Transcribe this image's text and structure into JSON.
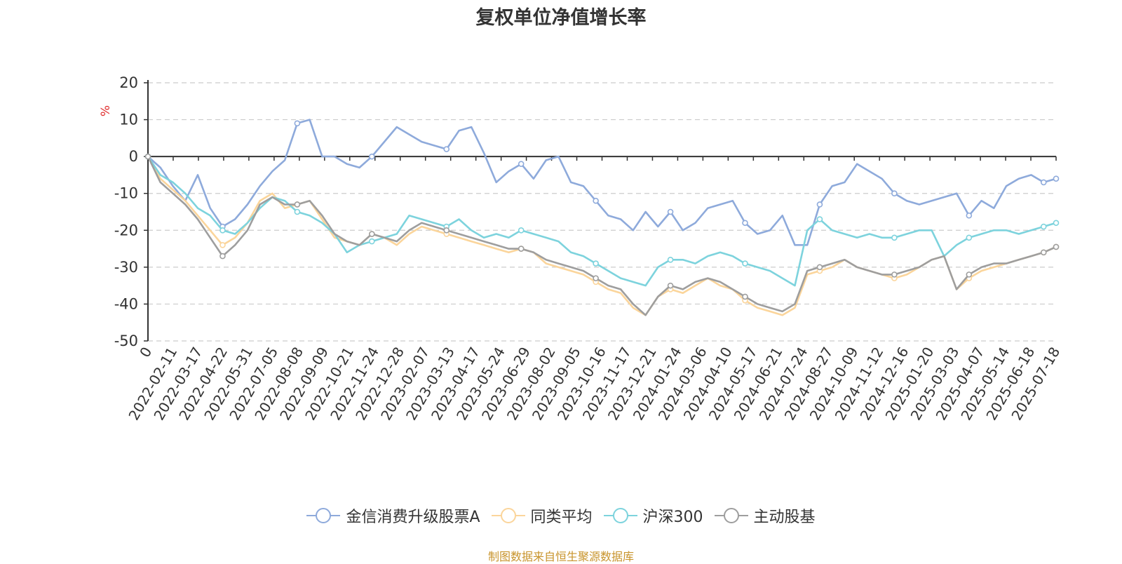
{
  "chart_data": {
    "type": "line",
    "title": "复权单位净值增长率",
    "ylabel": "%",
    "ylim": [
      -50,
      20
    ],
    "yticks": [
      20,
      10,
      0,
      -10,
      -20,
      -30,
      -40,
      -50
    ],
    "grid": true,
    "legend_position": "bottom",
    "source": "制图数据来自恒生聚源数据库",
    "x_labels": [
      "0",
      "2022-02-11",
      "2022-03-17",
      "2022-04-22",
      "2022-05-31",
      "2022-07-05",
      "2022-08-08",
      "2022-09-09",
      "2022-10-21",
      "2022-11-24",
      "2022-12-28",
      "2023-02-07",
      "2023-03-13",
      "2023-04-17",
      "2023-05-24",
      "2023-06-29",
      "2023-08-02",
      "2023-09-05",
      "2023-10-16",
      "2023-11-17",
      "2023-12-21",
      "2024-01-24",
      "2024-03-06",
      "2024-04-10",
      "2024-05-17",
      "2024-06-21",
      "2024-07-24",
      "2024-08-27",
      "2024-10-09",
      "2024-11-12",
      "2024-12-16",
      "2025-01-20",
      "2025-03-03",
      "2025-04-07",
      "2025-05-14",
      "2025-06-18",
      "2025-07-18"
    ],
    "series": [
      {
        "name": "金信消费升级股票A",
        "color": "#8eaadb",
        "values": [
          0,
          -3,
          -8,
          -12,
          -5,
          -14,
          -19,
          -17,
          -13,
          -8,
          -4,
          -1,
          9,
          10,
          0,
          0,
          -2,
          -3,
          0,
          4,
          8,
          6,
          4,
          3,
          2,
          7,
          8,
          1,
          -7,
          -4,
          -2,
          -6,
          -1,
          0,
          -7,
          -8,
          -12,
          -16,
          -17,
          -20,
          -15,
          -19,
          -15,
          -20,
          -18,
          -14,
          -13,
          -12,
          -18,
          -21,
          -20,
          -16,
          -24,
          -24,
          -13,
          -8,
          -7,
          -2,
          -4,
          -6,
          -10,
          -12,
          -13,
          -12,
          -11,
          -10,
          -16,
          -12,
          -14,
          -8,
          -6,
          -5,
          -7,
          -6
        ]
      },
      {
        "name": "同类平均",
        "color": "#fbd59b",
        "values": [
          0,
          -6,
          -9,
          -12,
          -16,
          -20,
          -24,
          -22,
          -18,
          -12,
          -10,
          -14,
          -13,
          -12,
          -17,
          -22,
          -23,
          -24,
          -21,
          -22,
          -24,
          -21,
          -19,
          -20,
          -21,
          -22,
          -23,
          -24,
          -25,
          -26,
          -25,
          -26,
          -29,
          -30,
          -31,
          -32,
          -34,
          -36,
          -37,
          -41,
          -43,
          -38,
          -36,
          -37,
          -35,
          -33,
          -35,
          -36,
          -39,
          -41,
          -42,
          -43,
          -41,
          -32,
          -31,
          -30,
          -28,
          -30,
          -31,
          -32,
          -33,
          -32,
          -30,
          -28,
          -27,
          -36,
          -33,
          -31,
          -30,
          -29,
          -28,
          -27,
          -26,
          -24.5
        ]
      },
      {
        "name": "沪深300",
        "color": "#7dd3dd",
        "values": [
          0,
          -5,
          -7,
          -10,
          -14,
          -16,
          -20,
          -21,
          -18,
          -14,
          -11,
          -12,
          -15,
          -16,
          -18,
          -21,
          -26,
          -24,
          -23,
          -22,
          -21,
          -16,
          -17,
          -18,
          -19,
          -17,
          -20,
          -22,
          -21,
          -22,
          -20,
          -21,
          -22,
          -23,
          -26,
          -27,
          -29,
          -31,
          -33,
          -34,
          -35,
          -30,
          -28,
          -28,
          -29,
          -27,
          -26,
          -27,
          -29,
          -30,
          -31,
          -33,
          -35,
          -20,
          -17,
          -20,
          -21,
          -22,
          -21,
          -22,
          -22,
          -21,
          -20,
          -20,
          -27,
          -24,
          -22,
          -21,
          -20,
          -20,
          -21,
          -20,
          -19,
          -18
        ]
      },
      {
        "name": "主动股基",
        "color": "#9e9e9e",
        "values": [
          0,
          -7,
          -10,
          -13,
          -17,
          -22,
          -27,
          -24,
          -20,
          -13,
          -11,
          -13,
          -13,
          -12,
          -16,
          -21,
          -23,
          -24,
          -21,
          -22,
          -23,
          -20,
          -18,
          -19,
          -20,
          -21,
          -22,
          -23,
          -24,
          -25,
          -25,
          -26,
          -28,
          -29,
          -30,
          -31,
          -33,
          -35,
          -36,
          -40,
          -43,
          -38,
          -35,
          -36,
          -34,
          -33,
          -34,
          -36,
          -38,
          -40,
          -41,
          -42,
          -40,
          -31,
          -30,
          -29,
          -28,
          -30,
          -31,
          -32,
          -32,
          -31,
          -30,
          -28,
          -27,
          -36,
          -32,
          -30,
          -29,
          -29,
          -28,
          -27,
          -26,
          -24.5
        ]
      }
    ]
  }
}
